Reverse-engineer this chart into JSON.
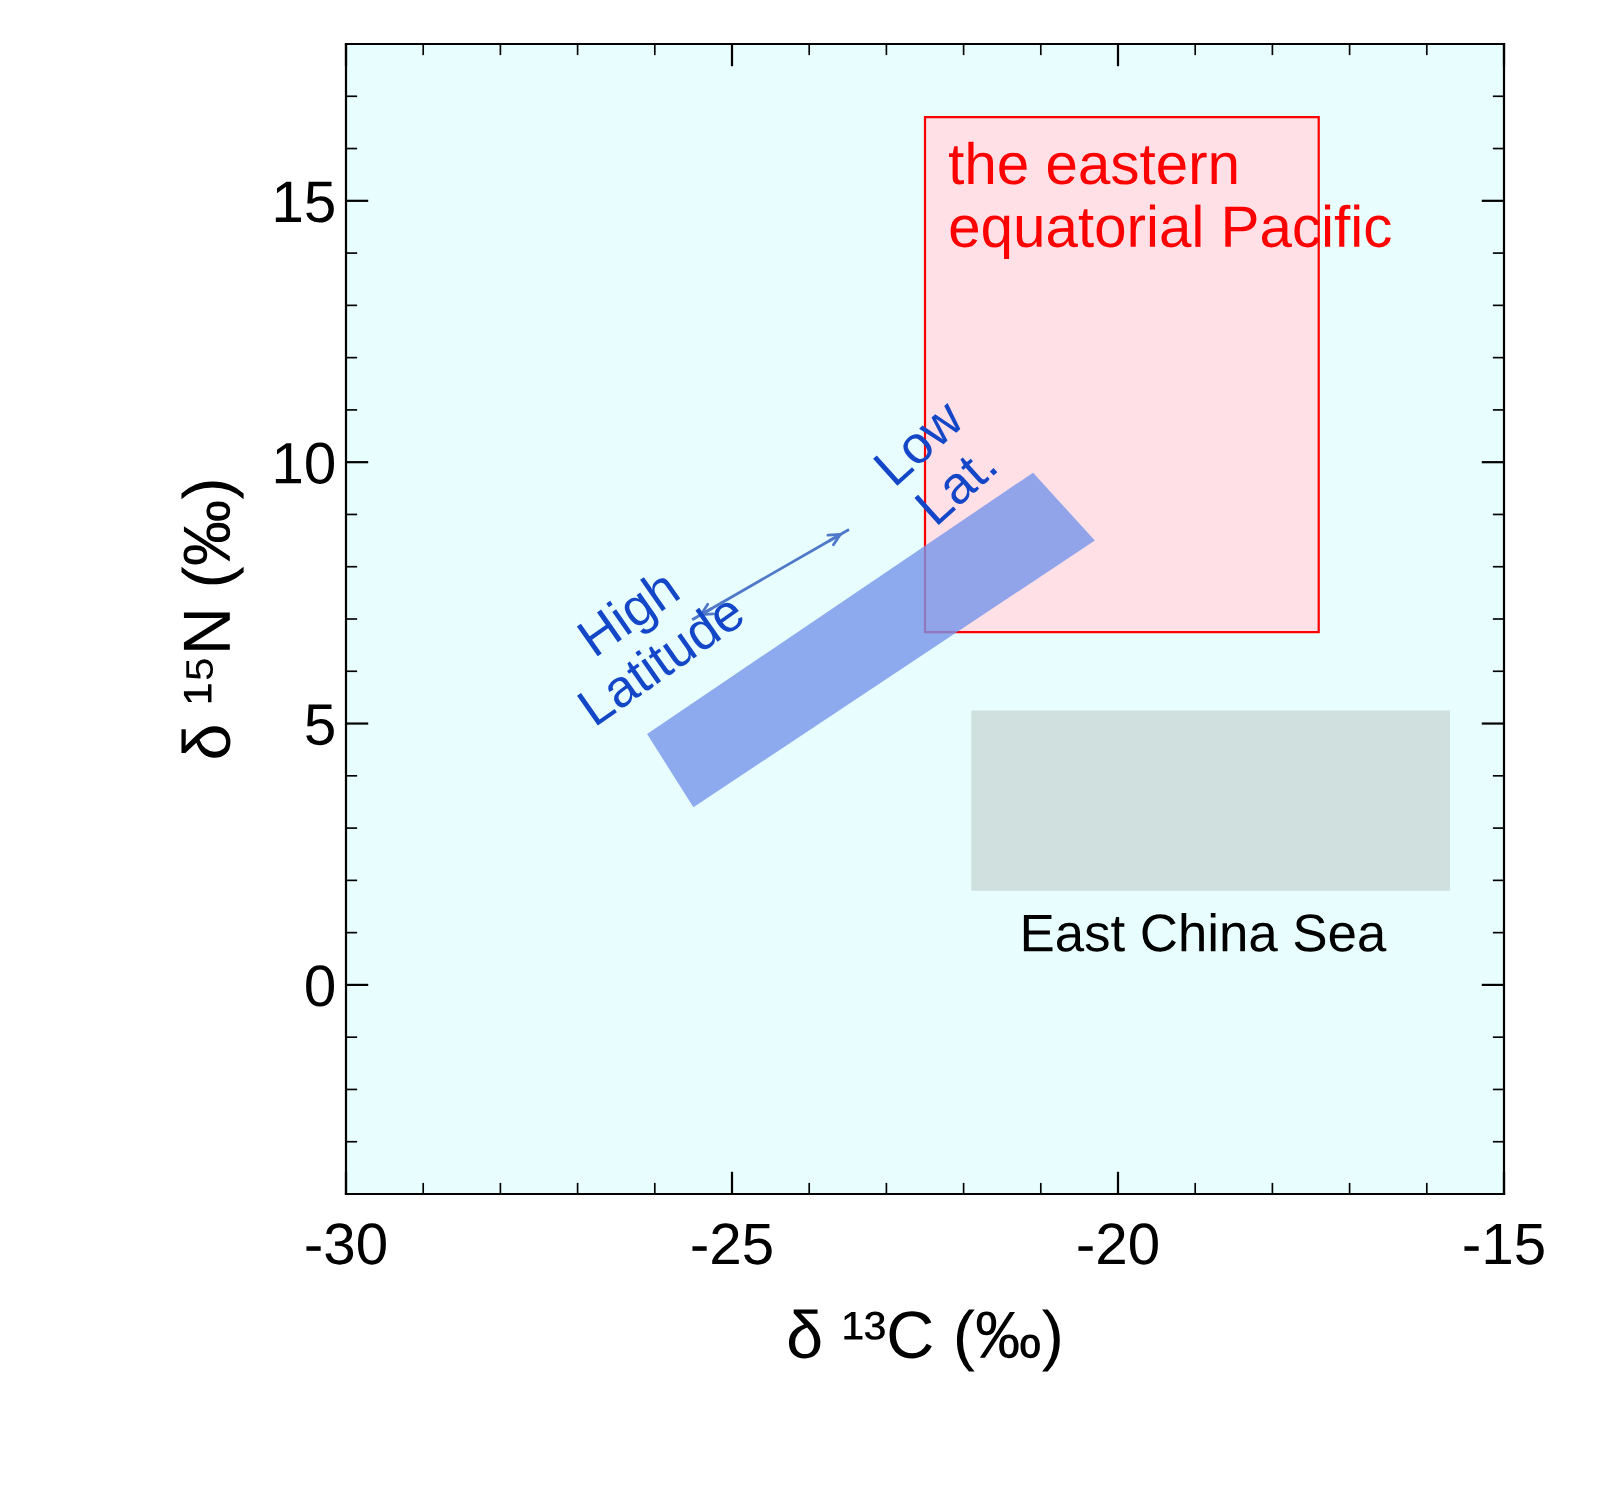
{
  "chart_data": {
    "type": "area",
    "xlabel": "δ ¹³C (‰)",
    "ylabel": "δ ¹⁵N (‰)",
    "xlim": [
      -30,
      -15
    ],
    "xticks": [
      -30,
      -25,
      -20,
      -15
    ],
    "ylim": [
      -4,
      18
    ],
    "yticks": [
      0,
      5,
      10,
      15
    ],
    "grid": false,
    "series": [
      {
        "color": "#ffe0e6",
        "x": [
          -22.5,
          -17.4,
          -17.4,
          -22.5
        ],
        "values": [
          6.75,
          6.75,
          16.6,
          16.6
        ]
      },
      {
        "color": "#c8d8d6",
        "x": [
          -21.9,
          -15.7,
          -15.7,
          -21.9
        ],
        "values": [
          1.8,
          1.8,
          5.25,
          5.25
        ]
      },
      {
        "color": "#7595ea",
        "x": [
          -26.1,
          -25.5,
          -20.3,
          -21.1
        ],
        "values": [
          4.8,
          3.4,
          8.5,
          9.8
        ]
      },
      {
        "type": "line",
        "color": "#5078c8",
        "x": [
          -25.5,
          -23.5
        ],
        "values": [
          7.0,
          8.7
        ]
      }
    ],
    "annotations": [
      "the eastern\nequatorial Pacific",
      "East China Sea",
      "High\nLatitude",
      "Low\nLat."
    ]
  }
}
